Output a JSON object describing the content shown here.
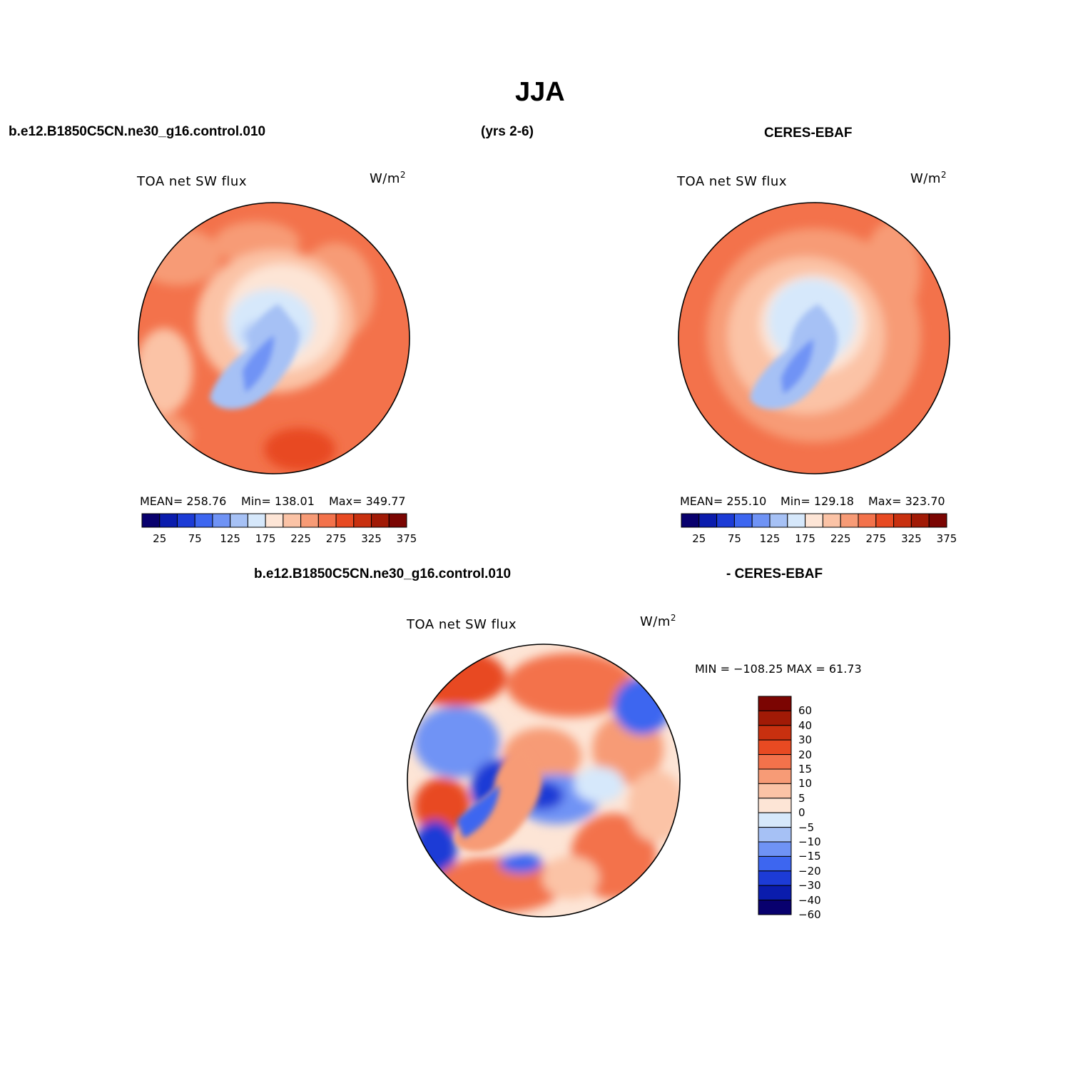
{
  "page": {
    "title": "JJA",
    "header_left": "b.e12.B1850C5CN.ne30_g16.control.010",
    "header_center": "(yrs 2-6)",
    "header_right": "CERES-EBAF",
    "diff_header_left": "b.e12.B1850C5CN.ne30_g16.control.010",
    "diff_header_right": "- CERES-EBAF"
  },
  "units": {
    "base": "W/m",
    "exp": "2"
  },
  "panels": [
    {
      "id": "model",
      "variable": "TOA net SW flux",
      "mean_label": "MEAN= 258.76",
      "min_label": "Min= 138.01",
      "max_label": "Max= 349.77"
    },
    {
      "id": "obs",
      "variable": "TOA net SW flux",
      "mean_label": "MEAN= 255.10",
      "min_label": "Min= 129.18",
      "max_label": "Max= 323.70"
    },
    {
      "id": "diff",
      "variable": "TOA net SW flux",
      "minmax_label": "MIN = −108.25 MAX =   61.73"
    }
  ],
  "colorbar": {
    "colors": [
      "#08006e",
      "#0a1cad",
      "#1c3bd6",
      "#3d66f0",
      "#6f93f5",
      "#a6c1f5",
      "#d6e8fb",
      "#fde5d6",
      "#fbc3a6",
      "#f79b76",
      "#f3724b",
      "#e84a22",
      "#c8300f",
      "#a11a06",
      "#7b0502"
    ],
    "ticks": [
      "25",
      "75",
      "125",
      "175",
      "225",
      "275",
      "325",
      "375"
    ]
  },
  "diff_colorbar": {
    "colors_top_to_bottom": [
      "#7b0502",
      "#a11a06",
      "#c8300f",
      "#e84a22",
      "#f3724b",
      "#f79b76",
      "#fbc3a6",
      "#fde5d6",
      "#d6e8fb",
      "#a6c1f5",
      "#6f93f5",
      "#3d66f0",
      "#1c3bd6",
      "#0a1cad",
      "#08006e"
    ],
    "ticks": [
      "60",
      "40",
      "30",
      "20",
      "15",
      "10",
      "5",
      "0",
      "−5",
      "−10",
      "−15",
      "−20",
      "−30",
      "−40",
      "−60"
    ]
  }
}
